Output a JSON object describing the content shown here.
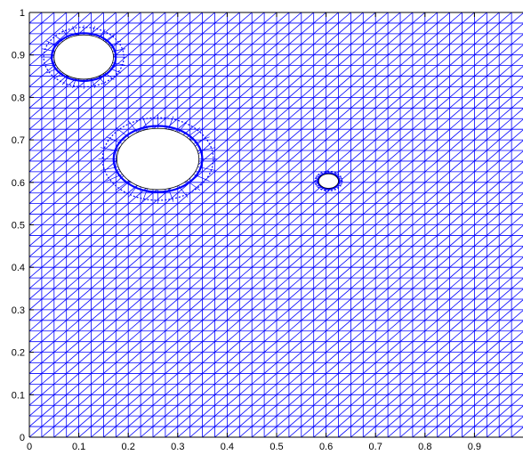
{
  "chart_data": {
    "type": "scatter",
    "title": "",
    "xlabel": "",
    "ylabel": "",
    "xlim": [
      0,
      1
    ],
    "ylim": [
      0,
      1
    ],
    "grid": false,
    "legend": "none",
    "x_ticks": [
      0,
      0.1,
      0.2,
      0.3,
      0.4,
      0.5,
      0.6,
      0.7,
      0.8,
      0.9
    ],
    "x_tick_labels": [
      "0",
      "0.1",
      "0.2",
      "0.3",
      "0.4",
      "0.5",
      "0.6",
      "0.7",
      "0.8",
      "0.9"
    ],
    "y_ticks": [
      0,
      0.1,
      0.2,
      0.3,
      0.4,
      0.5,
      0.6,
      0.7,
      0.8,
      0.9,
      1
    ],
    "y_tick_labels": [
      "0",
      "0.1",
      "0.2",
      "0.3",
      "0.4",
      "0.5",
      "0.6",
      "0.7",
      "0.8",
      "0.9",
      "1"
    ],
    "mesh": {
      "divisions": 40,
      "edge_color": "#0000ff",
      "diagonal": "bottom-left to top-right"
    },
    "holes": [
      {
        "cx": 0.11,
        "cy": 0.895,
        "rx": 0.06,
        "ry": 0.052
      },
      {
        "cx": 0.26,
        "cy": 0.655,
        "rx": 0.083,
        "ry": 0.072
      },
      {
        "cx": 0.605,
        "cy": 0.603,
        "rx": 0.02,
        "ry": 0.017
      }
    ]
  }
}
